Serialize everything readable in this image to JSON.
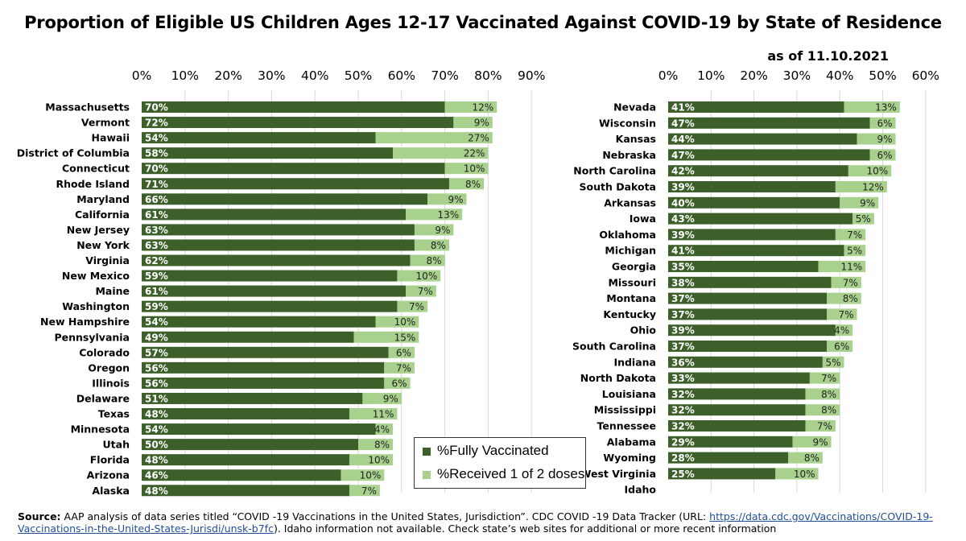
{
  "title": "Proportion of Eligible US Children Ages 12-17 Vaccinated Against COVID-19 by State of Residence",
  "subtitle": "as of 11.10.2021",
  "colors": {
    "fully": "#3d5f2a",
    "partial": "#a9d18e",
    "grid": "#d9d9d9"
  },
  "legend": {
    "fully_label": "%Fully Vaccinated",
    "partial_label": "%Received 1 of 2 doses"
  },
  "source": {
    "label": "Source:",
    "text_before": " AAP analysis of data series titled “COVID -19 Vaccinations in the United States, Jurisdiction”. CDC COVID -19 Data Tracker (URL: ",
    "url": "https://data.cdc.gov/Vaccinations/COVID-19-Vaccinations-in-the-United-States-Jurisdi/unsk-b7fc",
    "text_after": "). Idaho information not available. Check state’s web sites for additional or more recent information"
  },
  "chart_data": [
    {
      "type": "bar",
      "orientation": "horizontal",
      "stacked": true,
      "xlim": [
        0,
        90
      ],
      "ticks": [
        "0%",
        "10%",
        "20%",
        "30%",
        "40%",
        "50%",
        "60%",
        "70%",
        "80%",
        "90%"
      ],
      "tick_values": [
        0,
        10,
        20,
        30,
        40,
        50,
        60,
        70,
        80,
        90
      ],
      "categories": [
        "Massachusetts",
        "Vermont",
        "Hawaii",
        "District of Columbia",
        "Connecticut",
        "Rhode Island",
        "Maryland",
        "California",
        "New Jersey",
        "New York",
        "Virginia",
        "New Mexico",
        "Maine",
        "Washington",
        "New Hampshire",
        "Pennsylvania",
        "Colorado",
        "Oregon",
        "Illinois",
        "Delaware",
        "Texas",
        "Minnesota",
        "Utah",
        "Florida",
        "Arizona",
        "Alaska"
      ],
      "series": [
        {
          "name": "%Fully Vaccinated",
          "values": [
            70,
            72,
            54,
            58,
            70,
            71,
            66,
            61,
            63,
            63,
            62,
            59,
            61,
            59,
            54,
            49,
            57,
            56,
            56,
            51,
            48,
            54,
            50,
            48,
            46,
            48
          ],
          "labels": [
            "70%",
            "72%",
            "54%",
            "58%",
            "70%",
            "71%",
            "66%",
            "61%",
            "63%",
            "63%",
            "62%",
            "59%",
            "61%",
            "59%",
            "54%",
            "49%",
            "57%",
            "56%",
            "56%",
            "51%",
            "48%",
            "54%",
            "50%",
            "48%",
            "46%",
            "48%"
          ]
        },
        {
          "name": "%Received 1 of 2 doses",
          "values": [
            12,
            9,
            27,
            22,
            10,
            8,
            9,
            13,
            9,
            8,
            8,
            10,
            7,
            7,
            10,
            15,
            6,
            7,
            6,
            9,
            11,
            4,
            8,
            10,
            10,
            7
          ],
          "labels": [
            "12%",
            "9%",
            "27%",
            "22%",
            "10%",
            "8%",
            "9%",
            "13%",
            "9%",
            "8%",
            "8%",
            "10%",
            "7%",
            "7%",
            "10%",
            "15%",
            "6%",
            "7%",
            "6%",
            "9%",
            "11%",
            "4%",
            "8%",
            "10%",
            "10%",
            "7%"
          ]
        }
      ],
      "grid": true
    },
    {
      "type": "bar",
      "orientation": "horizontal",
      "stacked": true,
      "xlim": [
        0,
        60
      ],
      "ticks": [
        "0%",
        "10%",
        "20%",
        "30%",
        "40%",
        "50%",
        "60%"
      ],
      "tick_values": [
        0,
        10,
        20,
        30,
        40,
        50,
        60
      ],
      "categories": [
        "Nevada",
        "Wisconsin",
        "Kansas",
        "Nebraska",
        "North Carolina",
        "South Dakota",
        "Arkansas",
        "Iowa",
        "Oklahoma",
        "Michigan",
        "Georgia",
        "Missouri",
        "Montana",
        "Kentucky",
        "Ohio",
        "South Carolina",
        "Indiana",
        "North Dakota",
        "Louisiana",
        "Mississippi",
        "Tennessee",
        "Alabama",
        "Wyoming",
        "West Virginia",
        "Idaho"
      ],
      "series": [
        {
          "name": "%Fully Vaccinated",
          "values": [
            41,
            47,
            44,
            47,
            42,
            39,
            40,
            43,
            39,
            41,
            35,
            38,
            37,
            37,
            39,
            37,
            36,
            33,
            32,
            32,
            32,
            29,
            28,
            25,
            null
          ],
          "labels": [
            "41%",
            "47%",
            "44%",
            "47%",
            "42%",
            "39%",
            "40%",
            "43%",
            "39%",
            "41%",
            "35%",
            "38%",
            "37%",
            "37%",
            "39%",
            "37%",
            "36%",
            "33%",
            "32%",
            "32%",
            "32%",
            "29%",
            "28%",
            "25%",
            ""
          ]
        },
        {
          "name": "%Received 1 of 2 doses",
          "values": [
            13,
            6,
            9,
            6,
            10,
            12,
            9,
            5,
            7,
            5,
            11,
            7,
            8,
            7,
            4,
            6,
            5,
            7,
            8,
            8,
            7,
            9,
            8,
            10,
            null
          ],
          "labels": [
            "13%",
            "6%",
            "9%",
            "6%",
            "10%",
            "12%",
            "9%",
            "5%",
            "7%",
            "5%",
            "11%",
            "7%",
            "8%",
            "7%",
            "4%",
            "6%",
            "5%",
            "7%",
            "8%",
            "8%",
            "7%",
            "9%",
            "8%",
            "10%",
            ""
          ]
        }
      ],
      "grid": true
    }
  ]
}
